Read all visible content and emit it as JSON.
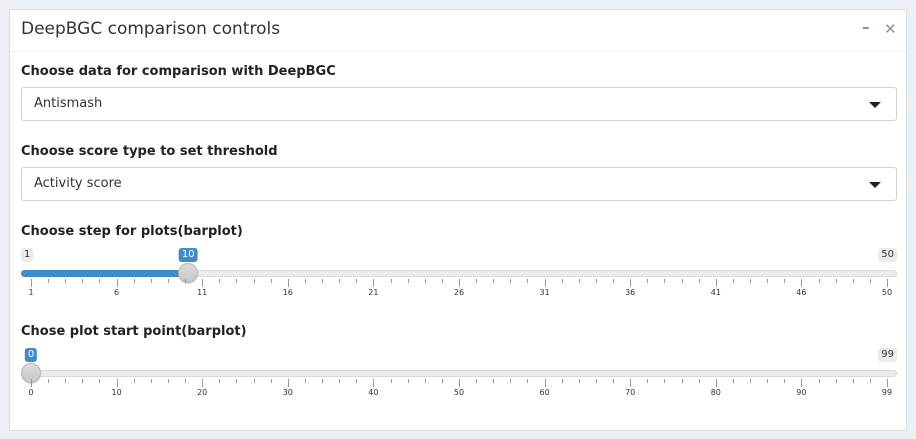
{
  "panel": {
    "title": "DeepBGC comparison controls",
    "minimize_icon": "minus-icon",
    "close_icon": "close-icon"
  },
  "compare_select": {
    "label": "Choose data for comparison with DeepBGC",
    "value": "Antismash",
    "icon": "caret-down-icon"
  },
  "score_select": {
    "label": "Choose score type to set threshold",
    "value": "Activity score",
    "icon": "caret-down-icon"
  },
  "step_slider": {
    "label": "Choose step for plots(barplot)",
    "min": 1,
    "max": 50,
    "value": 10,
    "min_label": "1",
    "max_label": "50",
    "value_label": "10",
    "tick_labels": [
      "1",
      "6",
      "11",
      "16",
      "21",
      "26",
      "31",
      "36",
      "41",
      "46",
      "50"
    ]
  },
  "start_slider": {
    "label": "Chose plot start point(barplot)",
    "min": 0,
    "max": 99,
    "value": 0,
    "min_label": "",
    "max_label": "99",
    "value_label": "0",
    "tick_labels": [
      "0",
      "10",
      "20",
      "30",
      "40",
      "50",
      "60",
      "70",
      "80",
      "90",
      "99"
    ]
  },
  "colors": {
    "accent": "#428bca",
    "background": "#ecf0f5"
  }
}
